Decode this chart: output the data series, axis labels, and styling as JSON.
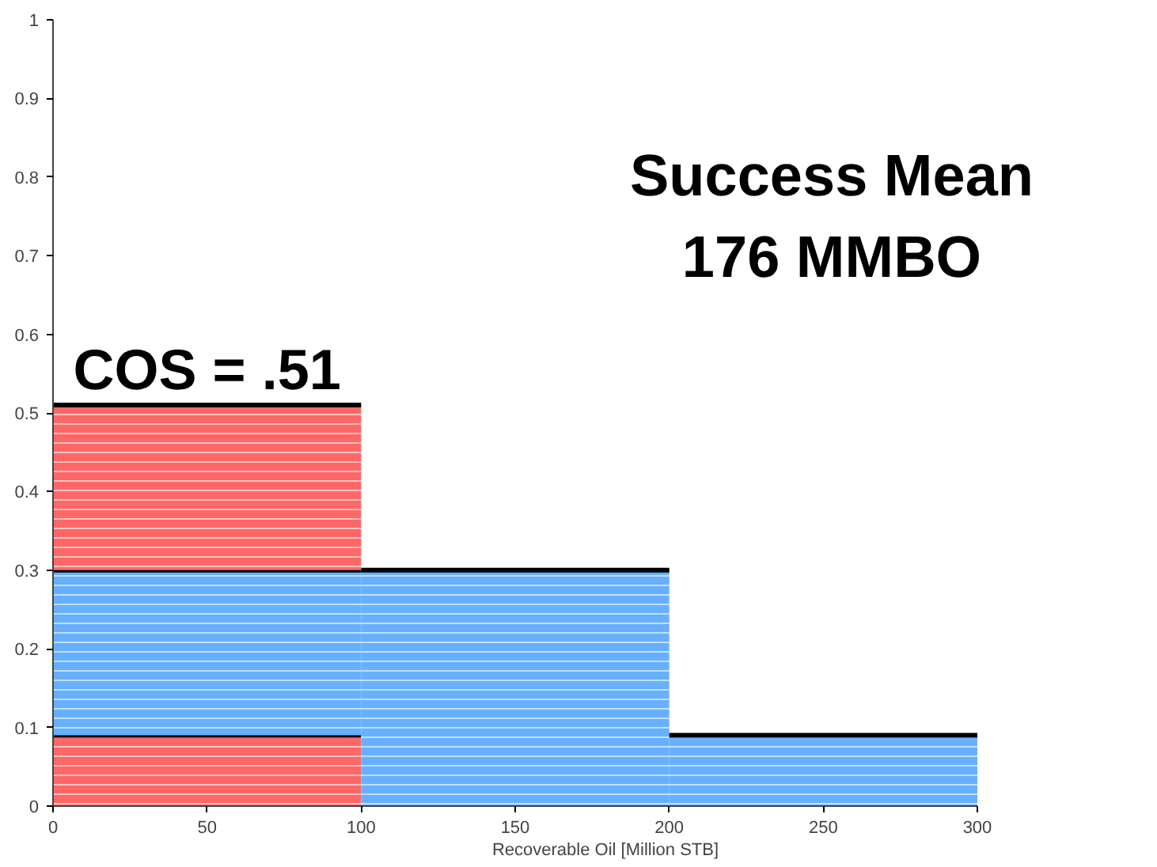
{
  "chart_data": {
    "type": "bar",
    "stacked": true,
    "x": [
      50,
      150,
      250
    ],
    "series": [
      {
        "color": "#ff6666",
        "values": [
          0.09,
          null,
          null
        ]
      },
      {
        "color": "#66b0ff",
        "values": [
          0.21,
          0.3,
          0.09
        ]
      },
      {
        "color": "#ff6666",
        "values": [
          0.21,
          null,
          null
        ]
      }
    ],
    "xlabel": "Recoverable Oil [Million STB]",
    "xlim": [
      0,
      300
    ],
    "xticks": [
      0,
      50,
      100,
      150,
      200,
      250,
      300
    ],
    "ylim": [
      0,
      1
    ],
    "yticks": [
      0,
      0.1,
      0.2,
      0.3,
      0.4,
      0.5,
      0.6,
      0.7,
      0.8,
      0.9,
      1
    ],
    "grid": false,
    "annotations": [
      {
        "text": "COS = .51",
        "x": 50,
        "y": 0.51
      },
      "Success Mean\n176 MMBO"
    ]
  }
}
